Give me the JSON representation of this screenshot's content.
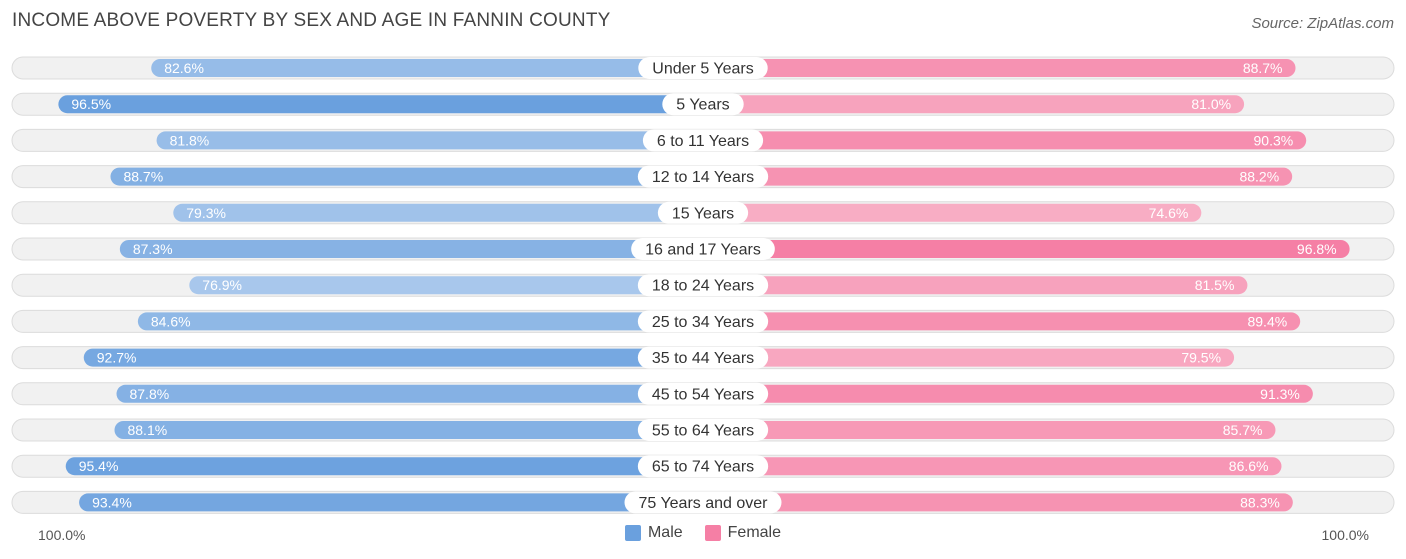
{
  "header": {
    "title": "INCOME ABOVE POVERTY BY SEX AND AGE IN FANNIN COUNTY",
    "source": "Source: ZipAtlas.com"
  },
  "axis": {
    "left_label": "100.0%",
    "right_label": "100.0%"
  },
  "legend": {
    "male": "Male",
    "female": "Female"
  },
  "colors": {
    "male_strong": "#6aa0de",
    "male_light": "#a9c8ec",
    "female_strong": "#f57fa5",
    "female_light": "#f8adc4",
    "row_bg": "#f1f1f1",
    "row_border": "#dcdcdc"
  },
  "chart_data": {
    "type": "bar",
    "orientation": "diverging-horizontal",
    "title": "INCOME ABOVE POVERTY BY SEX AND AGE IN FANNIN COUNTY",
    "categories": [
      "Under 5 Years",
      "5 Years",
      "6 to 11 Years",
      "12 to 14 Years",
      "15 Years",
      "16 and 17 Years",
      "18 to 24 Years",
      "25 to 34 Years",
      "35 to 44 Years",
      "45 to 54 Years",
      "55 to 64 Years",
      "65 to 74 Years",
      "75 Years and over"
    ],
    "series": [
      {
        "name": "Male",
        "values": [
          82.6,
          96.5,
          81.8,
          88.7,
          79.3,
          87.3,
          76.9,
          84.6,
          92.7,
          87.8,
          88.1,
          95.4,
          93.4
        ],
        "labels": [
          "82.6%",
          "96.5%",
          "81.8%",
          "88.7%",
          "79.3%",
          "87.3%",
          "76.9%",
          "84.6%",
          "92.7%",
          "87.8%",
          "88.1%",
          "95.4%",
          "93.4%"
        ]
      },
      {
        "name": "Female",
        "values": [
          88.7,
          81.0,
          90.3,
          88.2,
          74.6,
          96.8,
          81.5,
          89.4,
          79.5,
          91.3,
          85.7,
          86.6,
          88.3
        ],
        "labels": [
          "88.7%",
          "81.0%",
          "90.3%",
          "88.2%",
          "74.6%",
          "96.8%",
          "81.5%",
          "89.4%",
          "79.5%",
          "91.3%",
          "85.7%",
          "86.6%",
          "88.3%"
        ]
      }
    ],
    "xlim": [
      0,
      100
    ],
    "xlabel_left": "100.0%",
    "xlabel_right": "100.0%",
    "legend_position": "bottom-center"
  }
}
